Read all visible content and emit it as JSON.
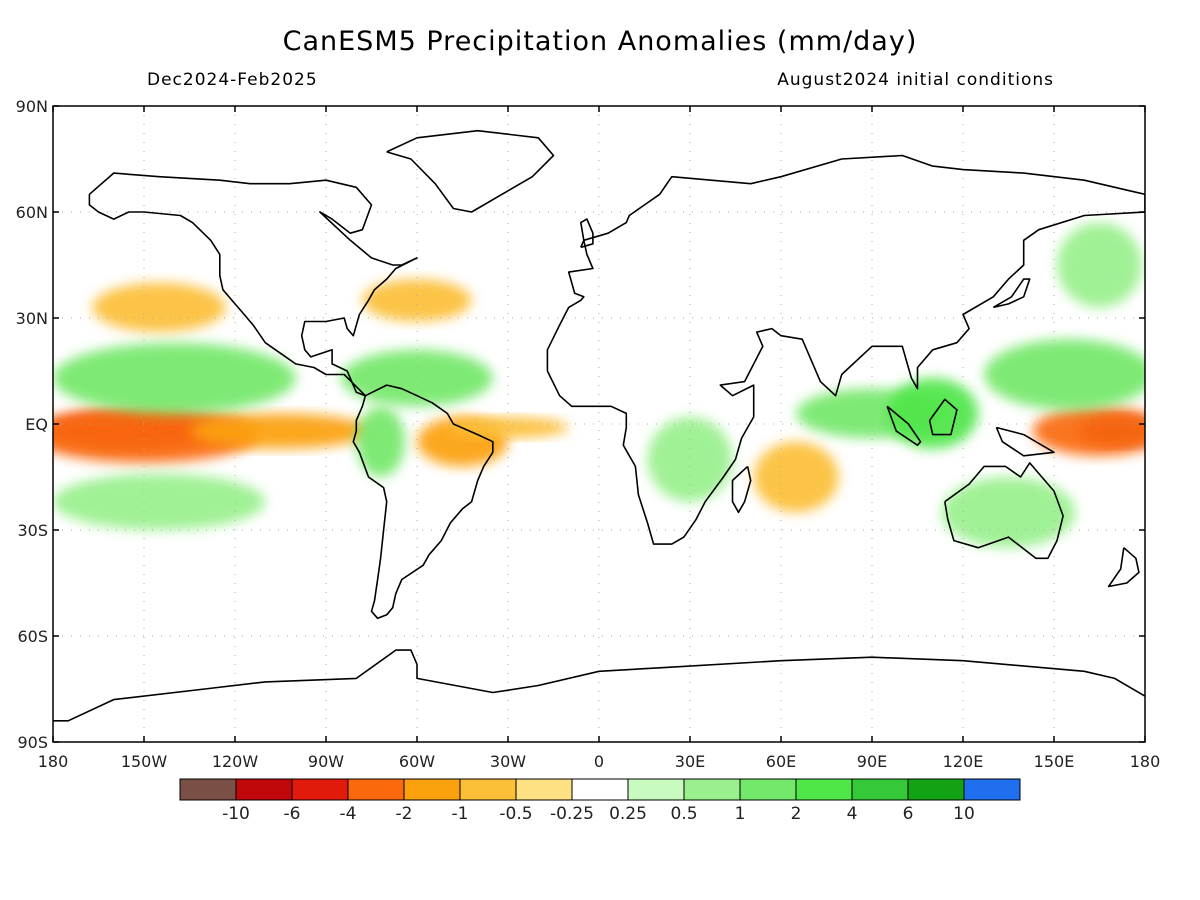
{
  "title": "CanESM5 Precipitation Anomalies (mm/day)",
  "subtitle_left": "Dec2024-Feb2025",
  "subtitle_right": "August2024 initial conditions",
  "colors": {
    "frame": "#000000",
    "grid": "#aaaaaa",
    "coast": "#000000"
  },
  "axes": {
    "lat_ticks": [
      {
        "value": 90,
        "label": "90N"
      },
      {
        "value": 60,
        "label": "60N"
      },
      {
        "value": 30,
        "label": "30N"
      },
      {
        "value": 0,
        "label": "EQ"
      },
      {
        "value": -30,
        "label": "30S"
      },
      {
        "value": -60,
        "label": "60S"
      },
      {
        "value": -90,
        "label": "90S"
      }
    ],
    "lon_ticks": [
      {
        "value": 180,
        "label": "180"
      },
      {
        "value": 210,
        "label": "150W"
      },
      {
        "value": 240,
        "label": "120W"
      },
      {
        "value": 270,
        "label": "90W"
      },
      {
        "value": 300,
        "label": "60W"
      },
      {
        "value": 330,
        "label": "30W"
      },
      {
        "value": 360,
        "label": "0"
      },
      {
        "value": 390,
        "label": "30E"
      },
      {
        "value": 420,
        "label": "60E"
      },
      {
        "value": 450,
        "label": "90E"
      },
      {
        "value": 480,
        "label": "120E"
      },
      {
        "value": 510,
        "label": "150E"
      },
      {
        "value": 540,
        "label": "180"
      }
    ],
    "lon_range": [
      180,
      540
    ],
    "lat_range": [
      -90,
      90
    ]
  },
  "colorbar": {
    "colors": [
      "#7a4f45",
      "#c0080b",
      "#e21a0b",
      "#fa6a0c",
      "#fca10e",
      "#fcbf38",
      "#fee182",
      "#ffffff",
      "#c9fbc1",
      "#99f08d",
      "#74e86a",
      "#4fe64a",
      "#35c838",
      "#12a314",
      "#1f6fef"
    ],
    "labels": [
      "-10",
      "-6",
      "-4",
      "-2",
      "-1",
      "-0.5",
      "-0.25",
      "0.25",
      "0.5",
      "1",
      "2",
      "4",
      "6",
      "10"
    ]
  },
  "anomaly_fields": [
    {
      "name": "central-pacific-dry-core",
      "lon": 205,
      "lat": -2,
      "rx": 28,
      "ry": 5,
      "level": "-4"
    },
    {
      "name": "central-pacific-dry",
      "lon": 210,
      "lat": -3,
      "rx": 38,
      "ry": 8,
      "level": "-2"
    },
    {
      "name": "east-pacific-dry",
      "lon": 255,
      "lat": -2,
      "rx": 30,
      "ry": 5,
      "level": "-1"
    },
    {
      "name": "west-pacific-dry-core",
      "lon": 530,
      "lat": -2,
      "rx": 12,
      "ry": 4,
      "level": "-6"
    },
    {
      "name": "west-pacific-dry",
      "lon": 525,
      "lat": -2,
      "rx": 22,
      "ry": 7,
      "level": "-2"
    },
    {
      "name": "amazon-dry",
      "lon": 315,
      "lat": -5,
      "rx": 15,
      "ry": 7,
      "level": "-1"
    },
    {
      "name": "atlantic-eq-dry",
      "lon": 330,
      "lat": -1,
      "rx": 20,
      "ry": 3,
      "level": "-0.5"
    },
    {
      "name": "north-pacific-dry",
      "lon": 215,
      "lat": 33,
      "rx": 22,
      "ry": 7,
      "level": "-0.5"
    },
    {
      "name": "north-atlantic-dry",
      "lon": 300,
      "lat": 35,
      "rx": 18,
      "ry": 6,
      "level": "-0.5"
    },
    {
      "name": "indian-ocean-dry",
      "lon": 425,
      "lat": -15,
      "rx": 14,
      "ry": 10,
      "level": "-0.5"
    },
    {
      "name": "tropical-pacific-north-wet",
      "lon": 220,
      "lat": 13,
      "rx": 40,
      "ry": 10,
      "level": "1"
    },
    {
      "name": "tropical-pacific-south-wet",
      "lon": 215,
      "lat": -22,
      "rx": 35,
      "ry": 8,
      "level": "0.5"
    },
    {
      "name": "caribbean-wet",
      "lon": 300,
      "lat": 13,
      "rx": 25,
      "ry": 8,
      "level": "1"
    },
    {
      "name": "amazon-west-wet",
      "lon": 288,
      "lat": -5,
      "rx": 8,
      "ry": 10,
      "level": "1"
    },
    {
      "name": "africa-east-wet",
      "lon": 390,
      "lat": -10,
      "rx": 14,
      "ry": 12,
      "level": "0.5"
    },
    {
      "name": "indian-ocean-wet",
      "lon": 450,
      "lat": 3,
      "rx": 25,
      "ry": 7,
      "level": "1"
    },
    {
      "name": "maritime-continent-wet",
      "lon": 470,
      "lat": 3,
      "rx": 15,
      "ry": 10,
      "level": "2"
    },
    {
      "name": "west-pacific-north-wet",
      "lon": 515,
      "lat": 14,
      "rx": 28,
      "ry": 10,
      "level": "1"
    },
    {
      "name": "australia-wet",
      "lon": 495,
      "lat": -25,
      "rx": 22,
      "ry": 10,
      "level": "0.5"
    },
    {
      "name": "north-pacific-high-wet",
      "lon": 525,
      "lat": 45,
      "rx": 14,
      "ry": 12,
      "level": "0.5"
    }
  ],
  "coastlines": [
    {
      "name": "north-america",
      "points": [
        [
          192,
          65
        ],
        [
          200,
          71
        ],
        [
          215,
          70
        ],
        [
          235,
          69
        ],
        [
          245,
          68
        ],
        [
          258,
          68
        ],
        [
          270,
          69
        ],
        [
          280,
          67
        ],
        [
          285,
          62
        ],
        [
          282,
          55
        ],
        [
          278,
          54
        ],
        [
          272,
          58
        ],
        [
          268,
          60
        ],
        [
          278,
          52
        ],
        [
          285,
          47
        ],
        [
          292,
          45
        ],
        [
          295,
          45
        ],
        [
          300,
          47
        ],
        [
          293,
          44
        ],
        [
          290,
          41
        ],
        [
          286,
          38
        ],
        [
          284,
          35
        ],
        [
          281,
          31
        ],
        [
          279,
          25
        ],
        [
          277,
          27
        ],
        [
          276,
          30
        ],
        [
          270,
          29
        ],
        [
          263,
          29
        ],
        [
          262,
          25
        ],
        [
          263,
          21
        ],
        [
          265,
          19
        ],
        [
          272,
          21
        ],
        [
          272,
          17
        ],
        [
          277,
          15
        ],
        [
          280,
          9
        ],
        [
          283,
          8
        ],
        [
          276,
          14
        ],
        [
          270,
          14
        ],
        [
          266,
          16
        ],
        [
          260,
          17
        ],
        [
          255,
          20
        ],
        [
          250,
          23
        ],
        [
          246,
          28
        ],
        [
          242,
          32
        ],
        [
          240,
          34
        ],
        [
          236,
          38
        ],
        [
          235,
          42
        ],
        [
          235,
          48
        ],
        [
          232,
          52
        ],
        [
          226,
          57
        ],
        [
          222,
          59
        ],
        [
          210,
          60
        ],
        [
          205,
          60
        ],
        [
          200,
          58
        ],
        [
          195,
          60
        ],
        [
          192,
          62
        ],
        [
          192,
          65
        ]
      ]
    },
    {
      "name": "greenland",
      "points": [
        [
          290,
          77
        ],
        [
          300,
          81
        ],
        [
          320,
          83
        ],
        [
          340,
          81
        ],
        [
          345,
          76
        ],
        [
          338,
          70
        ],
        [
          330,
          66
        ],
        [
          318,
          60
        ],
        [
          312,
          61
        ],
        [
          306,
          68
        ],
        [
          298,
          75
        ],
        [
          290,
          77
        ]
      ]
    },
    {
      "name": "south-america",
      "points": [
        [
          283,
          8
        ],
        [
          290,
          11
        ],
        [
          295,
          10
        ],
        [
          300,
          8
        ],
        [
          305,
          6
        ],
        [
          310,
          3
        ],
        [
          312,
          0
        ],
        [
          320,
          -3
        ],
        [
          325,
          -5
        ],
        [
          325,
          -8
        ],
        [
          322,
          -12
        ],
        [
          320,
          -16
        ],
        [
          318,
          -22
        ],
        [
          315,
          -24
        ],
        [
          311,
          -28
        ],
        [
          308,
          -33
        ],
        [
          304,
          -37
        ],
        [
          302,
          -40
        ],
        [
          295,
          -44
        ],
        [
          293,
          -48
        ],
        [
          292,
          -52
        ],
        [
          290,
          -54
        ],
        [
          287,
          -55
        ],
        [
          285,
          -53
        ],
        [
          286,
          -50
        ],
        [
          287,
          -44
        ],
        [
          288,
          -38
        ],
        [
          289,
          -30
        ],
        [
          290,
          -22
        ],
        [
          289,
          -18
        ],
        [
          284,
          -15
        ],
        [
          281,
          -8
        ],
        [
          279,
          -5
        ],
        [
          280,
          -2
        ],
        [
          280,
          1
        ],
        [
          282,
          5
        ],
        [
          283,
          8
        ]
      ]
    },
    {
      "name": "africa-eurasia",
      "points": [
        [
          343,
          15
        ],
        [
          343,
          21
        ],
        [
          347,
          28
        ],
        [
          350,
          33
        ],
        [
          354,
          35
        ],
        [
          355,
          36
        ],
        [
          352,
          37
        ],
        [
          350,
          43
        ],
        [
          358,
          44
        ],
        [
          356,
          48
        ],
        [
          355,
          52
        ],
        [
          363,
          54
        ],
        [
          369,
          57
        ],
        [
          370,
          59
        ],
        [
          375,
          62
        ],
        [
          380,
          65
        ],
        [
          384,
          70
        ],
        [
          410,
          68
        ],
        [
          420,
          70
        ],
        [
          440,
          75
        ],
        [
          460,
          76
        ],
        [
          470,
          73
        ],
        [
          480,
          72
        ],
        [
          500,
          71
        ],
        [
          520,
          69
        ],
        [
          535,
          66
        ],
        [
          540,
          65
        ],
        [
          540,
          60
        ],
        [
          520,
          59
        ],
        [
          505,
          55
        ],
        [
          500,
          52
        ],
        [
          500,
          45
        ],
        [
          495,
          41
        ],
        [
          490,
          36
        ],
        [
          480,
          31
        ],
        [
          482,
          27
        ],
        [
          478,
          23
        ],
        [
          470,
          21
        ],
        [
          465,
          16
        ],
        [
          465,
          10
        ],
        [
          463,
          13
        ],
        [
          460,
          22
        ],
        [
          450,
          22
        ],
        [
          440,
          14
        ],
        [
          438,
          8
        ],
        [
          433,
          12
        ],
        [
          427,
          24
        ],
        [
          420,
          25
        ],
        [
          417,
          27
        ],
        [
          412,
          26
        ],
        [
          414,
          22
        ],
        [
          408,
          12
        ],
        [
          400,
          11
        ],
        [
          404,
          8
        ],
        [
          411,
          11
        ],
        [
          411,
          2
        ],
        [
          407,
          -4
        ],
        [
          405,
          -10
        ],
        [
          401,
          -15
        ],
        [
          395,
          -22
        ],
        [
          392,
          -27
        ],
        [
          388,
          -32
        ],
        [
          384,
          -34
        ],
        [
          378,
          -34
        ],
        [
          376,
          -28
        ],
        [
          373,
          -20
        ],
        [
          372,
          -12
        ],
        [
          368,
          -6
        ],
        [
          369,
          -1
        ],
        [
          369,
          3
        ],
        [
          364,
          5
        ],
        [
          358,
          5
        ],
        [
          351,
          5
        ],
        [
          347,
          8
        ],
        [
          343,
          15
        ]
      ]
    },
    {
      "name": "madagascar",
      "points": [
        [
          409,
          -12
        ],
        [
          410,
          -16
        ],
        [
          408,
          -22
        ],
        [
          406,
          -25
        ],
        [
          404,
          -22
        ],
        [
          404,
          -16
        ],
        [
          409,
          -12
        ]
      ]
    },
    {
      "name": "australia",
      "points": [
        [
          474,
          -22
        ],
        [
          475,
          -27
        ],
        [
          477,
          -33
        ],
        [
          485,
          -35
        ],
        [
          495,
          -32
        ],
        [
          504,
          -38
        ],
        [
          508,
          -38
        ],
        [
          511,
          -33
        ],
        [
          513,
          -26
        ],
        [
          510,
          -19
        ],
        [
          505,
          -14
        ],
        [
          502,
          -11
        ],
        [
          499,
          -15
        ],
        [
          494,
          -12
        ],
        [
          487,
          -12
        ],
        [
          482,
          -17
        ],
        [
          474,
          -22
        ]
      ]
    },
    {
      "name": "new-zealand",
      "points": [
        [
          533,
          -35
        ],
        [
          537,
          -38
        ],
        [
          538,
          -42
        ],
        [
          534,
          -45
        ],
        [
          528,
          -46
        ],
        [
          532,
          -41
        ],
        [
          533,
          -35
        ]
      ]
    },
    {
      "name": "antarctica",
      "points": [
        [
          180,
          -84
        ],
        [
          185,
          -84
        ],
        [
          200,
          -78
        ],
        [
          230,
          -75
        ],
        [
          250,
          -73
        ],
        [
          280,
          -72
        ],
        [
          293,
          -64
        ],
        [
          298,
          -64
        ],
        [
          300,
          -68
        ],
        [
          300,
          -72
        ],
        [
          325,
          -76
        ],
        [
          340,
          -74
        ],
        [
          360,
          -70
        ],
        [
          380,
          -69
        ],
        [
          420,
          -67
        ],
        [
          450,
          -66
        ],
        [
          480,
          -67
        ],
        [
          520,
          -70
        ],
        [
          530,
          -72
        ],
        [
          540,
          -77
        ]
      ]
    },
    {
      "name": "borneo",
      "points": [
        [
          469,
          1
        ],
        [
          474,
          7
        ],
        [
          478,
          4
        ],
        [
          476,
          -3
        ],
        [
          470,
          -3
        ],
        [
          469,
          1
        ]
      ]
    },
    {
      "name": "sumatra",
      "points": [
        [
          455,
          5
        ],
        [
          462,
          0
        ],
        [
          466,
          -5
        ],
        [
          465,
          -6
        ],
        [
          458,
          -2
        ],
        [
          455,
          5
        ]
      ]
    },
    {
      "name": "new-guinea",
      "points": [
        [
          491,
          -1
        ],
        [
          500,
          -3
        ],
        [
          510,
          -8
        ],
        [
          500,
          -9
        ],
        [
          493,
          -5
        ],
        [
          491,
          -1
        ]
      ]
    },
    {
      "name": "japan",
      "points": [
        [
          490,
          33
        ],
        [
          495,
          34
        ],
        [
          500,
          36
        ],
        [
          502,
          41
        ],
        [
          500,
          41
        ],
        [
          496,
          36
        ],
        [
          490,
          33
        ]
      ]
    },
    {
      "name": "britain",
      "points": [
        [
          354,
          50
        ],
        [
          358,
          51
        ],
        [
          358,
          54
        ],
        [
          356,
          58
        ],
        [
          354,
          57
        ],
        [
          355,
          52
        ],
        [
          354,
          50
        ]
      ]
    }
  ]
}
